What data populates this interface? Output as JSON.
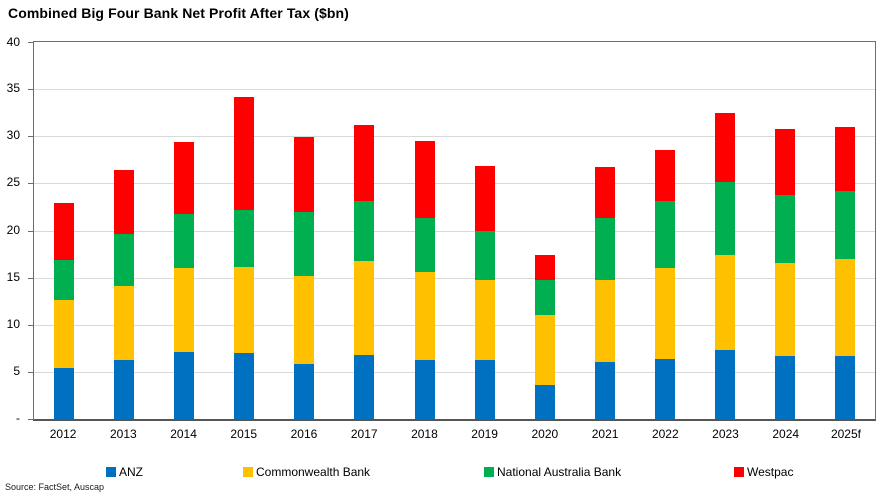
{
  "title": "Combined Big Four Bank Net Profit After Tax ($bn)",
  "source": "Source: FactSet, Auscap",
  "chart_data": {
    "type": "bar",
    "stacked": true,
    "title": "Combined Big Four Bank Net Profit After Tax ($bn)",
    "xlabel": "",
    "ylabel": "",
    "ylim": [
      0,
      40
    ],
    "ystep": 5,
    "ytick_labels": [
      "-",
      "5",
      "10",
      "15",
      "20",
      "25",
      "30",
      "35",
      "40"
    ],
    "grid": "horizontal",
    "gridline_color": "#d9d9d9",
    "legend_position": "bottom",
    "categories": [
      "2012",
      "2013",
      "2014",
      "2015",
      "2016",
      "2017",
      "2018",
      "2019",
      "2020",
      "2021",
      "2022",
      "2023",
      "2024",
      "2025f"
    ],
    "series": [
      {
        "name": "ANZ",
        "color": "#0070C0",
        "values": [
          5.4,
          6.3,
          7.1,
          7.0,
          5.8,
          6.8,
          6.3,
          6.3,
          3.6,
          6.1,
          6.4,
          7.3,
          6.7,
          6.7
        ]
      },
      {
        "name": "Commonwealth Bank",
        "color": "#FFC000",
        "values": [
          7.2,
          7.8,
          8.9,
          9.1,
          9.4,
          10.0,
          9.3,
          8.5,
          7.4,
          8.6,
          9.6,
          10.1,
          9.9,
          10.3
        ]
      },
      {
        "name": "National Australia Bank",
        "color": "#00B050",
        "values": [
          4.3,
          5.5,
          5.8,
          6.1,
          6.8,
          6.3,
          5.7,
          5.2,
          3.8,
          6.6,
          7.1,
          7.8,
          7.2,
          7.2
        ]
      },
      {
        "name": "Westpac",
        "color": "#FF0000",
        "values": [
          6.0,
          6.8,
          7.6,
          12.0,
          7.9,
          8.1,
          8.2,
          6.8,
          2.6,
          5.4,
          5.4,
          7.3,
          7.0,
          6.8
        ]
      }
    ],
    "totals": [
      22.9,
      26.4,
      29.4,
      34.2,
      29.9,
      31.2,
      29.5,
      26.8,
      17.4,
      26.7,
      28.5,
      32.5,
      30.8,
      31.0
    ]
  }
}
